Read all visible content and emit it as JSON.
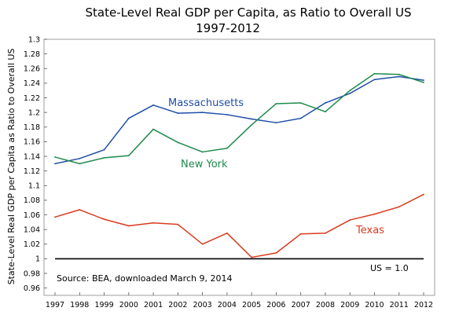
{
  "chart_data": {
    "type": "line",
    "title": "State-Level Real GDP per Capita, as Ratio to Overall US",
    "subtitle": "1997-2012",
    "xlabel": "",
    "ylabel": "State-Level Real GDP per Capita as Ratio to Overall US",
    "x": [
      1997,
      1998,
      1999,
      2000,
      2001,
      2002,
      2003,
      2004,
      2005,
      2006,
      2007,
      2008,
      2009,
      2010,
      2011,
      2012
    ],
    "x_tick_labels": [
      "1997",
      "1998",
      "1999",
      "2000",
      "2001",
      "2002",
      "2003",
      "2004",
      "2005",
      "2006",
      "2007",
      "2008",
      "2009",
      "2010",
      "2011",
      "2012"
    ],
    "ylim": [
      0.95,
      1.3
    ],
    "y_ticks": [
      0.96,
      0.98,
      1,
      1.02,
      1.04,
      1.06,
      1.08,
      1.1,
      1.12,
      1.14,
      1.16,
      1.18,
      1.2,
      1.22,
      1.24,
      1.26,
      1.28,
      1.3
    ],
    "y_tick_labels": [
      "0.96",
      "0.98",
      "1",
      "1.02",
      "1.04",
      "1.06",
      "1.08",
      "1.1",
      "1.12",
      "1.14",
      "1.16",
      "1.18",
      "1.2",
      "1.22",
      "1.24",
      "1.26",
      "1.28",
      "1.3"
    ],
    "grid": false,
    "series": [
      {
        "name": "Massachusetts",
        "color": "#1f4ea8",
        "values": [
          1.13,
          1.137,
          1.149,
          1.192,
          1.21,
          1.199,
          1.2,
          1.197,
          1.191,
          1.186,
          1.192,
          1.213,
          1.226,
          1.245,
          1.249,
          1.244
        ]
      },
      {
        "name": "New York",
        "color": "#1e8a4c",
        "values": [
          1.139,
          1.13,
          1.138,
          1.141,
          1.177,
          1.159,
          1.146,
          1.151,
          1.183,
          1.212,
          1.213,
          1.201,
          1.23,
          1.253,
          1.252,
          1.241
        ]
      },
      {
        "name": "Texas",
        "color": "#d93a1e",
        "values": [
          1.057,
          1.067,
          1.054,
          1.045,
          1.049,
          1.047,
          1.02,
          1.035,
          1.002,
          1.008,
          1.034,
          1.035,
          1.053,
          1.061,
          1.071,
          1.088
        ]
      }
    ],
    "reference_line": {
      "label": "US = 1.0",
      "value": 1.0,
      "color": "#000000"
    },
    "annotation": "Source:  BEA, downloaded March 9, 2014"
  }
}
